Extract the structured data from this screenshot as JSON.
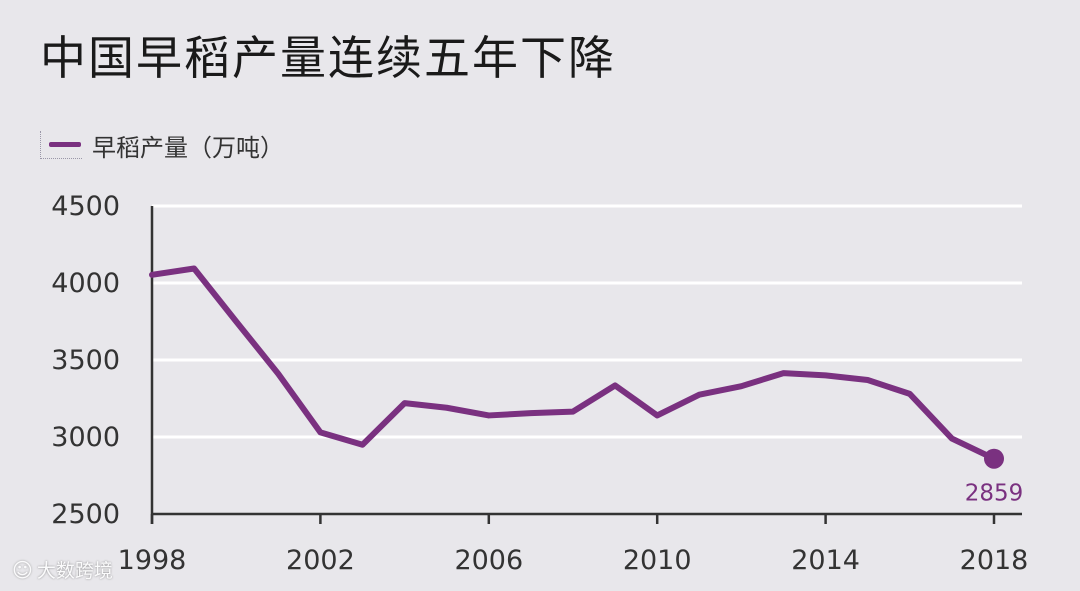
{
  "title": "中国早稻产量连续五年下降",
  "legend": {
    "label": "早稻产量（万吨）"
  },
  "watermark": {
    "text": "大数跨境"
  },
  "colors": {
    "line": "#7a3180",
    "grid": "#ffffff",
    "axis": "#333333",
    "text": "#333333",
    "background": "#e8e7eb"
  },
  "chart_data": {
    "type": "line",
    "x": [
      1998,
      1999,
      2000,
      2001,
      2002,
      2003,
      2004,
      2005,
      2006,
      2007,
      2008,
      2009,
      2010,
      2011,
      2012,
      2013,
      2014,
      2015,
      2016,
      2017,
      2018
    ],
    "series": [
      {
        "name": "早稻产量（万吨）",
        "values": [
          4053,
          4094,
          3750,
          3410,
          3030,
          2950,
          3220,
          3190,
          3140,
          3155,
          3165,
          3335,
          3140,
          3275,
          3330,
          3415,
          3400,
          3370,
          3280,
          2990,
          2859
        ]
      }
    ],
    "xticks": [
      "1998",
      "2002",
      "2006",
      "2010",
      "2014",
      "2018"
    ],
    "yticks": [
      "2500",
      "3000",
      "3500",
      "4000",
      "4500"
    ],
    "xlim": [
      1998,
      2018
    ],
    "ylim": [
      2500,
      4500
    ],
    "grid": true,
    "annotations": [
      {
        "x": 2018,
        "label": "2859"
      }
    ],
    "legend_position": "top-left"
  }
}
